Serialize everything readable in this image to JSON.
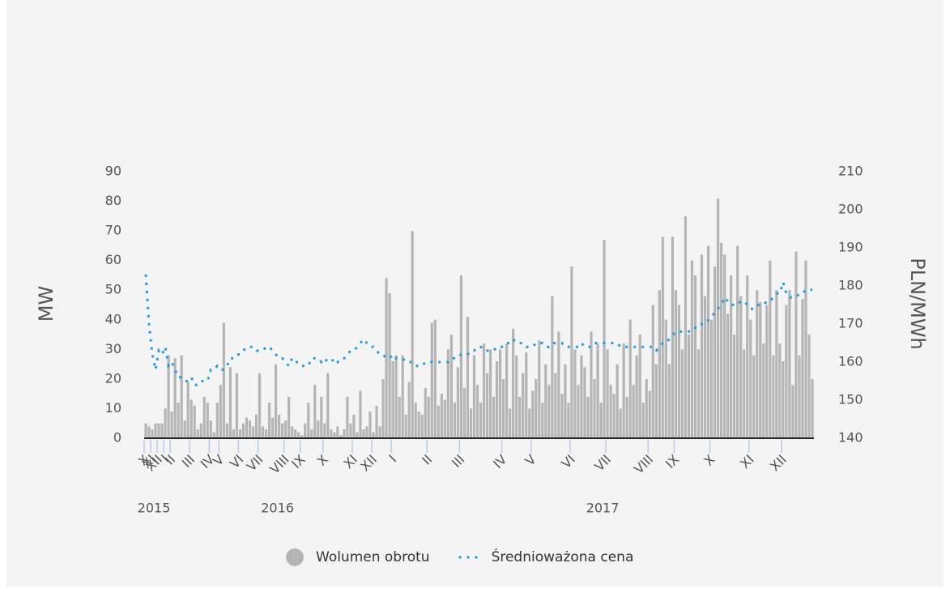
{
  "chart_data": {
    "type": "bar",
    "y_label": "MW",
    "y2_label": "PLN/MWh",
    "categories": [
      "X",
      null,
      "XI",
      null,
      "XII",
      null,
      "I",
      null,
      "II",
      null,
      null,
      null,
      null,
      null,
      "III",
      null,
      null,
      null,
      null,
      null,
      "IV",
      null,
      null,
      "V",
      null,
      null,
      null,
      null,
      null,
      "VI",
      null,
      null,
      null,
      null,
      null,
      "VII",
      null,
      null,
      null,
      null,
      null,
      null,
      null,
      "VIII",
      null,
      null,
      null,
      null,
      "IX",
      null,
      null,
      null,
      null,
      null,
      null,
      "X",
      null,
      null,
      null,
      null,
      null,
      null,
      null,
      null,
      "XI",
      null,
      null,
      null,
      null,
      null,
      "XII",
      null,
      null,
      null,
      null,
      null,
      "I",
      null,
      null,
      null,
      null,
      null,
      null,
      null,
      null,
      null,
      null,
      "II",
      null,
      null,
      null,
      null,
      null,
      null,
      null,
      null,
      null,
      "III",
      null,
      null,
      null,
      null,
      null,
      null,
      null,
      null,
      null,
      null,
      null,
      null,
      "IV",
      null,
      null,
      null,
      null,
      null,
      null,
      null,
      null,
      "V",
      null,
      null,
      null,
      null,
      null,
      null,
      null,
      null,
      null,
      null,
      null,
      "VI",
      null,
      null,
      null,
      null,
      null,
      null,
      null,
      null,
      null,
      null,
      "VII",
      null,
      null,
      null,
      null,
      null,
      null,
      null,
      null,
      null,
      null,
      null,
      null,
      "VIII",
      null,
      null,
      null,
      null,
      null,
      null,
      null,
      "IX",
      null,
      null,
      null,
      null,
      null,
      null,
      null,
      null,
      null,
      null,
      "X",
      null,
      null,
      null,
      null,
      null,
      null,
      null,
      null,
      null,
      null,
      null,
      "XI",
      null,
      null,
      null,
      null,
      null,
      null,
      null,
      null,
      null,
      "XII",
      null,
      null,
      null,
      null,
      null,
      null,
      null,
      null,
      null
    ],
    "x_groups": [
      {
        "label": "2015",
        "start": 0
      },
      {
        "label": "2016",
        "start": 6
      },
      {
        "label": "2017",
        "start": 76
      }
    ],
    "series": [
      {
        "name": "Wolumen obrotu",
        "type": "bar",
        "color": "#b5b5b5",
        "values": [
          5,
          4,
          3,
          5,
          5,
          5,
          10,
          28,
          9,
          27,
          12,
          28,
          6,
          19,
          13,
          11,
          3,
          5,
          14,
          12,
          6,
          2,
          12,
          18,
          39,
          5,
          24,
          3,
          22,
          3,
          5,
          7,
          6,
          4,
          8,
          22,
          4,
          3,
          12,
          7,
          25,
          8,
          5,
          6,
          14,
          4,
          3,
          2,
          1,
          5,
          12,
          3,
          18,
          6,
          14,
          5,
          22,
          3,
          2,
          4,
          1,
          3,
          14,
          5,
          8,
          2,
          16,
          3,
          4,
          9,
          2,
          11,
          4,
          20,
          54,
          49,
          26,
          28,
          14,
          28,
          8,
          19,
          70,
          12,
          9,
          8,
          17,
          14,
          39,
          40,
          11,
          15,
          13,
          30,
          35,
          12,
          24,
          55,
          17,
          41,
          10,
          28,
          18,
          12,
          32,
          22,
          30,
          14,
          26,
          30,
          20,
          32,
          10,
          37,
          28,
          14,
          22,
          29,
          10,
          16,
          20,
          33,
          12,
          25,
          18,
          48,
          22,
          36,
          15,
          25,
          12,
          58,
          30,
          18,
          28,
          24,
          14,
          36,
          20,
          32,
          12,
          67,
          30,
          18,
          15,
          25,
          10,
          32,
          14,
          40,
          18,
          28,
          35,
          12,
          20,
          16,
          45,
          25,
          50,
          68,
          40,
          25,
          68,
          50,
          45,
          30,
          75,
          35,
          60,
          55,
          30,
          62,
          48,
          65,
          40,
          58,
          81,
          66,
          62,
          42,
          55,
          35,
          65,
          48,
          30,
          55,
          40,
          28,
          50,
          46,
          32,
          45,
          60,
          28,
          50,
          32,
          26,
          45,
          50,
          18,
          63,
          28,
          47,
          60,
          35,
          20
        ]
      },
      {
        "name": "Średnioważona cena",
        "type": "line",
        "axis": "y2",
        "color": "#2b9bd8",
        "values": [
          183,
          170,
          162,
          158,
          163,
          162,
          164,
          159,
          160,
          158,
          156,
          156,
          155,
          155,
          156,
          154,
          154,
          155,
          155,
          155,
          158,
          158,
          159,
          158,
          158,
          159,
          161,
          161,
          162,
          162,
          163,
          164,
          164,
          164,
          163,
          163,
          163,
          164,
          164,
          163,
          162,
          161,
          161,
          160,
          159,
          161,
          160,
          160,
          159,
          159,
          159,
          161,
          161,
          161,
          160,
          161,
          160,
          160,
          161,
          160,
          161,
          161,
          162,
          163,
          163,
          164,
          165,
          166,
          165,
          164,
          164,
          163,
          162,
          162,
          161,
          161,
          162,
          161,
          161,
          161,
          160,
          160,
          160,
          159,
          159,
          159,
          160,
          160,
          160,
          160,
          160,
          160,
          160,
          160,
          161,
          161,
          161,
          162,
          162,
          162,
          163,
          163,
          164,
          164,
          163,
          163,
          163,
          163,
          164,
          164,
          164,
          165,
          165,
          166,
          165,
          165,
          165,
          164,
          164,
          164,
          165,
          165,
          165,
          164,
          164,
          165,
          165,
          165,
          165,
          164,
          164,
          164,
          164,
          164,
          165,
          164,
          164,
          164,
          165,
          165,
          165,
          165,
          165,
          165,
          165,
          165,
          164,
          164,
          164,
          164,
          164,
          164,
          164,
          164,
          164,
          164,
          164,
          163,
          164,
          165,
          165,
          166,
          167,
          168,
          168,
          168,
          168,
          168,
          169,
          169,
          169,
          170,
          170,
          171,
          172,
          173,
          174,
          175,
          177,
          176,
          175,
          175,
          175,
          176,
          176,
          175,
          174,
          174,
          175,
          175,
          175,
          176,
          176,
          177,
          178,
          178,
          181,
          178,
          177,
          177,
          177,
          178,
          178,
          179,
          179,
          179
        ]
      }
    ],
    "ylim": [
      0,
      90
    ],
    "yticks": [
      0,
      10,
      20,
      30,
      40,
      50,
      60,
      70,
      80,
      90
    ],
    "y2lim": [
      140,
      210
    ],
    "y2ticks": [
      140,
      150,
      160,
      170,
      180,
      190,
      200,
      210
    ]
  }
}
